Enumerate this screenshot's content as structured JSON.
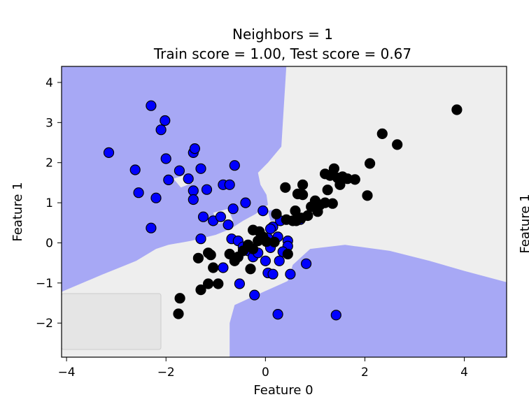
{
  "chart_data": {
    "type": "scatter",
    "title_line1": "Neighbors = 1",
    "title_line2": "Train score = 1.00, Test score = 0.67",
    "xlabel": "Feature 0",
    "ylabel": "Feature 1",
    "right_edge_ylabel": "Feature 1",
    "xlim": [
      -4.1,
      4.85
    ],
    "ylim": [
      -2.85,
      4.4
    ],
    "xticks": [
      -4,
      -2,
      0,
      2,
      4
    ],
    "xtick_labels": [
      "−4",
      "−2",
      "0",
      "2",
      "4"
    ],
    "yticks": [
      -2,
      -1,
      0,
      1,
      2,
      3,
      4
    ],
    "ytick_labels": [
      "−2",
      "−1",
      "0",
      "1",
      "2",
      "3",
      "4"
    ],
    "grid": false,
    "legend": "bottom-left (blank)",
    "colors": {
      "class0_region": "#a7a8f5",
      "class1_region": "#eeeeee",
      "class0_point": "#0000ff",
      "class1_point": "#000000",
      "point_edge": "#000000"
    },
    "decision_regions": [
      {
        "class": 0,
        "polygon": [
          [
            -4.1,
            4.4
          ],
          [
            0.42,
            4.4
          ],
          [
            0.35,
            3.0
          ],
          [
            0.32,
            2.4
          ],
          [
            0.05,
            2.0
          ],
          [
            -0.15,
            1.75
          ],
          [
            -0.1,
            1.45
          ],
          [
            0.02,
            1.2
          ],
          [
            0.05,
            0.95
          ],
          [
            -0.2,
            0.72
          ],
          [
            -0.45,
            0.55
          ],
          [
            -0.7,
            0.35
          ],
          [
            -1.0,
            0.2
          ],
          [
            -1.5,
            0.05
          ],
          [
            -1.95,
            -0.05
          ],
          [
            -2.2,
            -0.15
          ],
          [
            -2.6,
            -0.45
          ],
          [
            -3.3,
            -0.8
          ],
          [
            -4.1,
            -1.22
          ]
        ]
      },
      {
        "class": 0,
        "polygon": [
          [
            -0.62,
            -1.55
          ],
          [
            0.0,
            -1.2
          ],
          [
            0.45,
            -0.95
          ],
          [
            0.55,
            -0.55
          ],
          [
            0.9,
            -0.15
          ],
          [
            1.6,
            -0.05
          ],
          [
            2.5,
            -0.2
          ],
          [
            3.3,
            -0.45
          ],
          [
            4.0,
            -0.7
          ],
          [
            4.85,
            -0.98
          ],
          [
            4.85,
            -2.85
          ],
          [
            -0.72,
            -2.85
          ],
          [
            -0.72,
            -2.0
          ]
        ]
      },
      {
        "class": 1,
        "polygon": [
          [
            -1.85,
            1.6
          ],
          [
            -1.55,
            1.72
          ],
          [
            -1.45,
            1.5
          ],
          [
            -1.7,
            1.38
          ]
        ]
      },
      {
        "class": 1,
        "polygon": [
          [
            -1.05,
            0.75
          ],
          [
            -0.75,
            0.85
          ],
          [
            -0.65,
            0.55
          ],
          [
            -0.95,
            0.48
          ]
        ]
      },
      {
        "class": 1,
        "polygon": [
          [
            0.1,
            0.05
          ],
          [
            0.4,
            0.15
          ],
          [
            0.65,
            -0.1
          ],
          [
            0.55,
            -0.4
          ],
          [
            0.2,
            -0.35
          ]
        ]
      },
      {
        "class": 0,
        "polygon": [
          [
            0.05,
            0.8
          ],
          [
            0.25,
            0.85
          ],
          [
            0.3,
            0.55
          ],
          [
            0.1,
            0.55
          ]
        ]
      }
    ],
    "series": [
      {
        "name": "class 0",
        "points": [
          [
            -3.15,
            2.25
          ],
          [
            -2.3,
            3.42
          ],
          [
            -2.1,
            2.82
          ],
          [
            -2.02,
            3.05
          ],
          [
            -2.62,
            1.82
          ],
          [
            -2.55,
            1.25
          ],
          [
            -2.2,
            1.12
          ],
          [
            -2.3,
            0.37
          ],
          [
            -2.0,
            2.1
          ],
          [
            -1.95,
            1.57
          ],
          [
            -1.73,
            1.8
          ],
          [
            -1.45,
            2.25
          ],
          [
            -1.42,
            2.35
          ],
          [
            -1.3,
            1.85
          ],
          [
            -1.55,
            1.6
          ],
          [
            -1.45,
            1.3
          ],
          [
            -1.45,
            1.08
          ],
          [
            -1.18,
            1.33
          ],
          [
            -0.85,
            1.45
          ],
          [
            -0.72,
            1.45
          ],
          [
            -0.62,
            1.93
          ],
          [
            -1.25,
            0.65
          ],
          [
            -1.05,
            0.55
          ],
          [
            -0.9,
            0.65
          ],
          [
            -0.75,
            0.45
          ],
          [
            -0.65,
            0.85
          ],
          [
            -0.4,
            1.0
          ],
          [
            -0.68,
            0.1
          ],
          [
            -0.55,
            0.05
          ],
          [
            -0.45,
            -0.1
          ],
          [
            -0.35,
            -0.2
          ],
          [
            -0.25,
            -0.35
          ],
          [
            -0.15,
            -0.25
          ],
          [
            0.05,
            0.12
          ],
          [
            0.1,
            -0.12
          ],
          [
            0.15,
            0.4
          ],
          [
            0.25,
            0.15
          ],
          [
            0.3,
            0.55
          ],
          [
            0.1,
            0.35
          ],
          [
            0.45,
            0.05
          ],
          [
            0.45,
            -0.08
          ],
          [
            0.0,
            -0.45
          ],
          [
            0.05,
            -0.75
          ],
          [
            0.15,
            -0.78
          ],
          [
            0.28,
            -0.45
          ],
          [
            0.5,
            -0.78
          ],
          [
            0.82,
            -0.52
          ],
          [
            0.7,
            0.58
          ],
          [
            0.35,
            -0.22
          ],
          [
            -0.05,
            0.8
          ],
          [
            -0.85,
            -0.62
          ],
          [
            -0.52,
            -1.02
          ],
          [
            -0.22,
            -1.3
          ],
          [
            0.25,
            -1.78
          ],
          [
            1.42,
            -1.8
          ],
          [
            -1.3,
            0.1
          ]
        ]
      },
      {
        "name": "class 1",
        "points": [
          [
            -1.75,
            -1.77
          ],
          [
            -1.72,
            -1.38
          ],
          [
            -1.3,
            -1.17
          ],
          [
            -1.15,
            -1.02
          ],
          [
            -1.35,
            -0.38
          ],
          [
            -1.1,
            -0.3
          ],
          [
            -1.15,
            -0.25
          ],
          [
            -1.05,
            -0.62
          ],
          [
            -0.95,
            -1.02
          ],
          [
            -0.72,
            -0.28
          ],
          [
            -0.55,
            -0.35
          ],
          [
            -0.62,
            -0.45
          ],
          [
            -0.35,
            -0.05
          ],
          [
            -0.45,
            -0.2
          ],
          [
            -0.25,
            -0.15
          ],
          [
            -0.15,
            0.05
          ],
          [
            -0.05,
            0.15
          ],
          [
            -0.25,
            0.32
          ],
          [
            -0.12,
            0.28
          ],
          [
            -0.3,
            -0.65
          ],
          [
            0.02,
            0.03
          ],
          [
            0.22,
            0.72
          ],
          [
            0.42,
            0.58
          ],
          [
            0.55,
            0.55
          ],
          [
            0.62,
            0.55
          ],
          [
            0.72,
            0.62
          ],
          [
            0.45,
            -0.28
          ],
          [
            0.4,
            1.38
          ],
          [
            0.65,
            1.22
          ],
          [
            0.75,
            1.2
          ],
          [
            0.6,
            0.8
          ],
          [
            0.75,
            1.45
          ],
          [
            0.85,
            0.68
          ],
          [
            0.92,
            0.9
          ],
          [
            1.0,
            1.05
          ],
          [
            1.05,
            0.78
          ],
          [
            1.1,
            0.95
          ],
          [
            1.2,
            1.0
          ],
          [
            1.35,
            0.98
          ],
          [
            1.25,
            1.32
          ],
          [
            1.2,
            1.72
          ],
          [
            1.38,
            1.85
          ],
          [
            1.45,
            1.62
          ],
          [
            1.5,
            1.45
          ],
          [
            1.55,
            1.65
          ],
          [
            1.65,
            1.6
          ],
          [
            1.8,
            1.58
          ],
          [
            1.3,
            1.68
          ],
          [
            2.05,
            1.18
          ],
          [
            2.1,
            1.98
          ],
          [
            2.35,
            2.72
          ],
          [
            2.65,
            2.45
          ],
          [
            3.85,
            3.32
          ],
          [
            0.18,
            0.02
          ]
        ]
      }
    ]
  }
}
